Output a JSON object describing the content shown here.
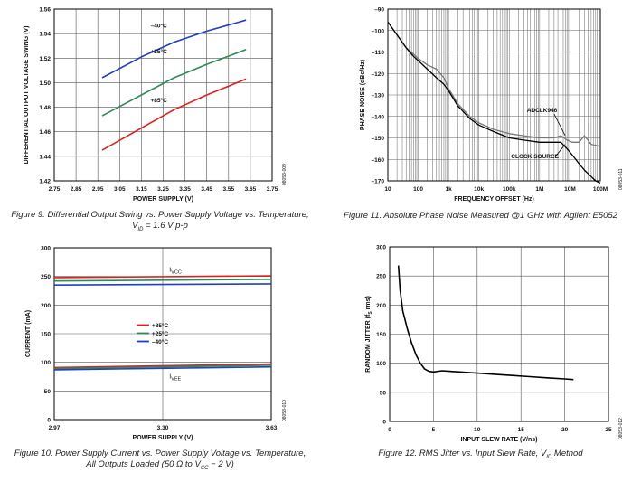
{
  "figures": [
    {
      "id": "fig9",
      "caption_line1": "Figure 9. Differential Output Swing vs. Power Supply Voltage vs. Temperature,",
      "caption_line2": "V",
      "caption_line2_sub": "ID",
      "caption_line2_rest": " = 1.6 V p-p",
      "code": "08053-009"
    },
    {
      "id": "fig11",
      "caption_line1": "Figure 11. Absolute Phase Noise Measured @1 GHz with Agilent E5052",
      "code": "08053-011"
    },
    {
      "id": "fig10",
      "caption_line1": "Figure 10. Power Supply Current vs. Power Supply Voltage vs. Temperature,",
      "caption_line2": "All Outputs Loaded (50 Ω to V",
      "caption_line2_sub": "CC",
      "caption_line2_rest": " − 2 V)",
      "code": "08053-010"
    },
    {
      "id": "fig12",
      "caption_line1": "Figure 12. RMS Jitter vs. Input Slew Rate, V",
      "caption_line1_sub": "ID",
      "caption_line1_rest": " Method",
      "code": "08053-012"
    }
  ],
  "chart_data": [
    {
      "type": "line",
      "xlabel": "POWER SUPPLY (V)",
      "ylabel": "DIFFERENTIAL OUTPUT VOLTAGE SWING (V)",
      "xlim": [
        2.75,
        3.75
      ],
      "ylim": [
        1.42,
        1.56
      ],
      "xticks": [
        "2.75",
        "2.85",
        "2.95",
        "3.05",
        "3.15",
        "3.25",
        "3.35",
        "3.45",
        "3.55",
        "3.65",
        "3.75"
      ],
      "yticks": [
        "1.42",
        "1.44",
        "1.46",
        "1.48",
        "1.50",
        "1.52",
        "1.54",
        "1.56"
      ],
      "grid": true,
      "series": [
        {
          "name": "–40°C",
          "color": "#1f3fc4",
          "x": [
            2.97,
            3.15,
            3.3,
            3.45,
            3.63
          ],
          "y": [
            1.504,
            1.521,
            1.533,
            1.542,
            1.551
          ]
        },
        {
          "name": "+25°C",
          "color": "#2e8b57",
          "x": [
            2.97,
            3.15,
            3.3,
            3.45,
            3.63
          ],
          "y": [
            1.473,
            1.49,
            1.504,
            1.515,
            1.527
          ]
        },
        {
          "name": "+85°C",
          "color": "#e0201b",
          "x": [
            2.97,
            3.15,
            3.3,
            3.45,
            3.63
          ],
          "y": [
            1.445,
            1.463,
            1.478,
            1.49,
            1.503
          ]
        }
      ]
    },
    {
      "type": "line",
      "xlabel": "FREQUENCY OFFSET (Hz)",
      "ylabel": "PHASE NOISE (dBc/Hz)",
      "xscale": "log",
      "xlim": [
        10,
        100000000
      ],
      "ylim": [
        -170,
        -90
      ],
      "xticks": [
        "10",
        "100",
        "1k",
        "10k",
        "100k",
        "1M",
        "10M",
        "100M"
      ],
      "yticks": [
        "–90",
        "–100",
        "–110",
        "–120",
        "–130",
        "–140",
        "–150",
        "–160",
        "–170"
      ],
      "grid": true,
      "annotations": [
        "ADCLK946",
        "CLOCK SOURCE"
      ],
      "series": [
        {
          "name": "ADCLK946",
          "color": "#777777",
          "x": [
            10,
            20,
            40,
            70,
            100,
            200,
            400,
            700,
            1000,
            2000,
            5000,
            10000,
            30000,
            100000,
            300000,
            1000000,
            3000000,
            5000000,
            8000000,
            12000000,
            20000000,
            30000000,
            50000000,
            100000000
          ],
          "y": [
            -96,
            -102,
            -108,
            -111,
            -113,
            -116,
            -118,
            -122,
            -127,
            -134,
            -140,
            -143,
            -146,
            -148,
            -149,
            -150,
            -150,
            -149,
            -151,
            -152,
            -152,
            -149,
            -153,
            -154
          ]
        },
        {
          "name": "CLOCK SOURCE",
          "color": "#000000",
          "x": [
            10,
            20,
            40,
            70,
            100,
            200,
            400,
            700,
            1000,
            2000,
            5000,
            10000,
            30000,
            100000,
            300000,
            1000000,
            3000000,
            5000000,
            8000000,
            12000000,
            20000000,
            30000000,
            50000000,
            70000000,
            100000000
          ],
          "y": [
            -96,
            -102,
            -108,
            -112,
            -114,
            -118,
            -122,
            -125,
            -128,
            -135,
            -141,
            -144,
            -147,
            -150,
            -151,
            -152,
            -152,
            -152,
            -155,
            -158,
            -162,
            -165,
            -168,
            -170,
            -171
          ]
        }
      ]
    },
    {
      "type": "line",
      "xlabel": "POWER SUPPLY (V)",
      "ylabel": "CURRENT (mA)",
      "xlim": [
        2.97,
        3.63
      ],
      "ylim": [
        0,
        300
      ],
      "xticks": [
        "2.97",
        "3.30",
        "3.63"
      ],
      "yticks": [
        "0",
        "50",
        "100",
        "150",
        "200",
        "250",
        "300"
      ],
      "grid": true,
      "annotations": [
        "I",
        "VCC",
        "I",
        "VEE"
      ],
      "legend": [
        "+85°C",
        "+25°C",
        "–40°C"
      ],
      "series": [
        {
          "name": "+85°C",
          "color": "#e0201b",
          "x": [
            2.97,
            3.63
          ],
          "y": [
            248,
            251
          ]
        },
        {
          "name": "+25°C",
          "color": "#2e8b57",
          "x": [
            2.97,
            3.63
          ],
          "y": [
            242,
            245
          ]
        },
        {
          "name": "–40°C",
          "color": "#1f3fc4",
          "x": [
            2.97,
            3.63
          ],
          "y": [
            235,
            237
          ]
        },
        {
          "name": "+85°C",
          "color": "#e0201b",
          "x": [
            2.97,
            3.63
          ],
          "y": [
            91,
            97
          ]
        },
        {
          "name": "+25°C",
          "color": "#2e8b57",
          "x": [
            2.97,
            3.63
          ],
          "y": [
            89,
            95
          ]
        },
        {
          "name": "–40°C",
          "color": "#1f3fc4",
          "x": [
            2.97,
            3.63
          ],
          "y": [
            87,
            92
          ]
        }
      ]
    },
    {
      "type": "line",
      "xlabel": "INPUT SLEW RATE (V/ns)",
      "ylabel": "RANDOM JITTER (f",
      "ylabel_sub": "S",
      "ylabel_rest": " rms)",
      "xlim": [
        0,
        25
      ],
      "ylim": [
        0,
        300
      ],
      "xticks": [
        "0",
        "5",
        "10",
        "15",
        "20",
        "25"
      ],
      "yticks": [
        "0",
        "50",
        "100",
        "150",
        "200",
        "250",
        "300"
      ],
      "grid": true,
      "series": [
        {
          "color": "#000000",
          "x": [
            1.0,
            1.2,
            1.5,
            2.0,
            2.5,
            3.0,
            3.5,
            4.0,
            4.5,
            5.0,
            6.0,
            7.0,
            8.0,
            10.0,
            12.0,
            14.0,
            16.0,
            18.0,
            20.0,
            21.0
          ],
          "y": [
            268,
            225,
            190,
            160,
            135,
            115,
            100,
            90,
            86,
            85,
            87,
            86,
            85,
            83,
            81,
            79,
            77,
            75,
            73,
            72
          ]
        }
      ]
    }
  ]
}
